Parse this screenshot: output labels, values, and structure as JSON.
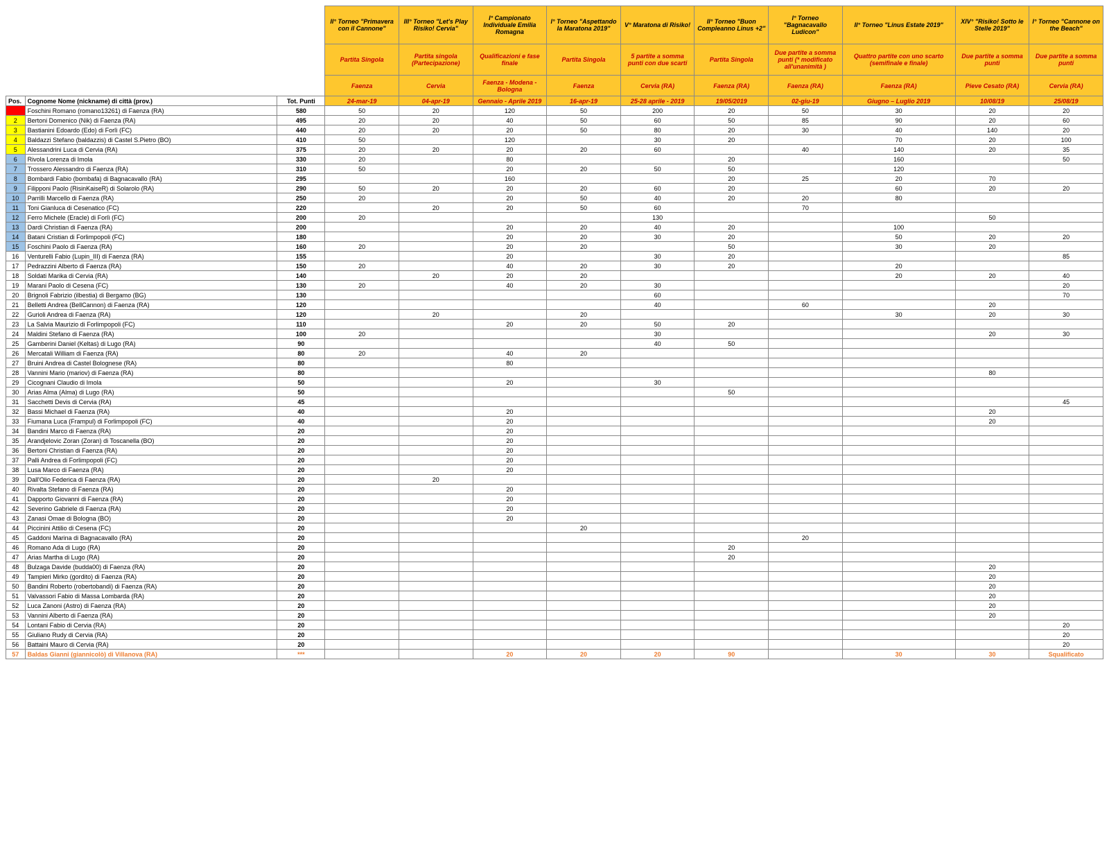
{
  "columns": {
    "pos": "Pos.",
    "name": "Cognome Nome (nickname) di città (prov.)",
    "tot": "Tot. Punti"
  },
  "events": [
    {
      "title": "II° Torneo \"Primavera con il Cannone\"",
      "format": "Partita Singola",
      "city": "Faenza",
      "date": "24-mar-19"
    },
    {
      "title": "III° Torneo \"Let's Play Risiko! Cervia\"",
      "format": "Partita singola (Partecipazione)",
      "city": "Cervia",
      "date": "04-apr-19"
    },
    {
      "title": "I° Campionato Individuale Emilia Romagna",
      "format": "Qualificazioni e fase finale",
      "city": "Faenza - Modena - Bologna",
      "date": "Gennaio - Aprile 2019"
    },
    {
      "title": "I° Torneo \"Aspettando la Maratona 2019\"",
      "format": "Partita Singola",
      "city": "Faenza",
      "date": "16-apr-19"
    },
    {
      "title": "V° Maratona di Risiko!",
      "format": "5 partite a somma punti con due scarti",
      "city": "Cervia (RA)",
      "date": "25-28 aprile - 2019"
    },
    {
      "title": "II° Torneo \"Buon Compleanno Linus +2\"",
      "format": "Partita Singola",
      "city": "Faenza (RA)",
      "date": "19/05/2019"
    },
    {
      "title": "I° Torneo \"Bagnacavallo Ludicon\"",
      "format": "Due partite a somma punti (* modificato all'unanimità )",
      "city": "Faenza (RA)",
      "date": "02-giu-19"
    },
    {
      "title": "II° Torneo \"Linus Estate 2019\"",
      "format": "Quattro partite con uno scarto (semifinale e finale)",
      "city": "Faenza (RA)",
      "date": "Giugno – Luglio 2019"
    },
    {
      "title": "XIV° \"Risiko! Sotto le Stelle 2019\"",
      "format": "Due partite a somma punti",
      "city": "Pieve Cesato (RA)",
      "date": "10/08/19"
    },
    {
      "title": "I° Torneo \"Cannone on the Beach\"",
      "format": "Due partite a somma punti",
      "city": "Cervia (RA)",
      "date": "25/08/19"
    }
  ],
  "rows": [
    {
      "pos": "1",
      "posClass": "pos-red",
      "name": "Foschini Romano (romano13261) di Faenza (RA)",
      "tot": "580",
      "v": [
        "50",
        "20",
        "120",
        "50",
        "200",
        "20",
        "50",
        "30",
        "20",
        "20"
      ]
    },
    {
      "pos": "2",
      "posClass": "pos-yel",
      "name": "Bertoni Domenico (Nik) di Faenza (RA)",
      "tot": "495",
      "v": [
        "20",
        "20",
        "40",
        "50",
        "60",
        "50",
        "85",
        "90",
        "20",
        "60"
      ]
    },
    {
      "pos": "3",
      "posClass": "pos-yel",
      "name": "Bastianini Edoardo (Edo) di Forlì (FC)",
      "tot": "440",
      "v": [
        "20",
        "20",
        "20",
        "50",
        "80",
        "20",
        "30",
        "40",
        "140",
        "20"
      ]
    },
    {
      "pos": "4",
      "posClass": "pos-yel",
      "name": "Baldazzi Stefano (baldazzis) di Castel S.Pietro (BO)",
      "tot": "410",
      "v": [
        "50",
        "",
        "120",
        "",
        "30",
        "20",
        "",
        "70",
        "20",
        "100"
      ]
    },
    {
      "pos": "5",
      "posClass": "pos-yel",
      "name": "Alessandrini Luca di Cervia (RA)",
      "tot": "375",
      "v": [
        "20",
        "20",
        "20",
        "20",
        "60",
        "",
        "40",
        "140",
        "20",
        "35"
      ]
    },
    {
      "pos": "6",
      "posClass": "pos-blu",
      "name": "Rivola Lorenza di Imola",
      "tot": "330",
      "v": [
        "20",
        "",
        "80",
        "",
        "",
        "20",
        "",
        "160",
        "",
        "50"
      ]
    },
    {
      "pos": "7",
      "posClass": "pos-blu",
      "name": "Trossero Alessandro di Faenza (RA)",
      "tot": "310",
      "v": [
        "50",
        "",
        "20",
        "20",
        "50",
        "50",
        "",
        "120",
        "",
        ""
      ]
    },
    {
      "pos": "8",
      "posClass": "pos-blu",
      "name": "Bombardi Fabio (bombafa) di Bagnacavallo (RA)",
      "tot": "295",
      "v": [
        "",
        "",
        "160",
        "",
        "",
        "20",
        "25",
        "20",
        "70",
        ""
      ]
    },
    {
      "pos": "9",
      "posClass": "pos-blu",
      "name": "Filipponi Paolo (RisinKaiseR) di Solarolo (RA)",
      "tot": "290",
      "v": [
        "50",
        "20",
        "20",
        "20",
        "60",
        "20",
        "",
        "60",
        "20",
        "20"
      ]
    },
    {
      "pos": "10",
      "posClass": "pos-blu",
      "name": "Parrilli Marcello di Faenza (RA)",
      "tot": "250",
      "v": [
        "20",
        "",
        "20",
        "50",
        "40",
        "20",
        "20",
        "80",
        "",
        ""
      ]
    },
    {
      "pos": "11",
      "posClass": "pos-blu",
      "name": "Toni Gianluca di Cesenatico (FC)",
      "tot": "220",
      "v": [
        "",
        "20",
        "20",
        "50",
        "60",
        "",
        "70",
        "",
        "",
        ""
      ]
    },
    {
      "pos": "12",
      "posClass": "pos-blu",
      "name": "Ferro Michele (Eracle) di Forlì (FC)",
      "tot": "200",
      "v": [
        "20",
        "",
        "",
        "",
        "130",
        "",
        "",
        "",
        "50",
        ""
      ]
    },
    {
      "pos": "13",
      "posClass": "pos-blu",
      "name": "Dardi Christian di Faenza (RA)",
      "tot": "200",
      "v": [
        "",
        "",
        "20",
        "20",
        "40",
        "20",
        "",
        "100",
        "",
        ""
      ]
    },
    {
      "pos": "14",
      "posClass": "pos-blu",
      "name": "Batani Cristian di Forlimpopoli (FC)",
      "tot": "180",
      "v": [
        "",
        "",
        "20",
        "20",
        "30",
        "20",
        "",
        "50",
        "20",
        "20"
      ]
    },
    {
      "pos": "15",
      "posClass": "pos-blu",
      "name": "Foschini Paolo di Faenza (RA)",
      "tot": "160",
      "v": [
        "20",
        "",
        "20",
        "20",
        "",
        "50",
        "",
        "30",
        "20",
        ""
      ]
    },
    {
      "pos": "16",
      "name": "Venturelli Fabio (Lupin_III) di Faenza (RA)",
      "tot": "155",
      "v": [
        "",
        "",
        "20",
        "",
        "30",
        "20",
        "",
        "",
        "",
        "85"
      ]
    },
    {
      "pos": "17",
      "name": "Pedrazzini Alberto di Faenza (RA)",
      "tot": "150",
      "v": [
        "20",
        "",
        "40",
        "20",
        "30",
        "20",
        "",
        "20",
        "",
        ""
      ]
    },
    {
      "pos": "18",
      "name": "Soldati Marika di Cervia (RA)",
      "tot": "140",
      "v": [
        "",
        "20",
        "20",
        "20",
        "",
        "",
        "",
        "20",
        "20",
        "40"
      ]
    },
    {
      "pos": "19",
      "name": "Marani Paolo di Cesena (FC)",
      "tot": "130",
      "v": [
        "20",
        "",
        "40",
        "20",
        "30",
        "",
        "",
        "",
        "",
        "20"
      ]
    },
    {
      "pos": "20",
      "name": "Brignoli Fabrizio (ilbestia) di Bergamo (BG)",
      "tot": "130",
      "v": [
        "",
        "",
        "",
        "",
        "60",
        "",
        "",
        "",
        "",
        "70"
      ]
    },
    {
      "pos": "21",
      "name": "Belletti Andrea (BellCannon) di Faenza (RA)",
      "tot": "120",
      "v": [
        "",
        "",
        "",
        "",
        "40",
        "",
        "60",
        "",
        "20",
        ""
      ]
    },
    {
      "pos": "22",
      "name": "Gurioli Andrea di Faenza (RA)",
      "tot": "120",
      "v": [
        "",
        "20",
        "",
        "20",
        "",
        "",
        "",
        "30",
        "20",
        "30"
      ]
    },
    {
      "pos": "23",
      "name": "La Salvia Maurizio di Forlimpopoli (FC)",
      "tot": "110",
      "v": [
        "",
        "",
        "20",
        "20",
        "50",
        "20",
        "",
        "",
        "",
        ""
      ]
    },
    {
      "pos": "24",
      "name": "Maldini Stefano di Faenza (RA)",
      "tot": "100",
      "v": [
        "20",
        "",
        "",
        "",
        "30",
        "",
        "",
        "",
        "20",
        "30"
      ]
    },
    {
      "pos": "25",
      "name": "Gamberini Daniel (Keltas) di Lugo (RA)",
      "tot": "90",
      "v": [
        "",
        "",
        "",
        "",
        "40",
        "50",
        "",
        "",
        "",
        ""
      ]
    },
    {
      "pos": "26",
      "name": "Mercatali William di Faenza (RA)",
      "tot": "80",
      "v": [
        "20",
        "",
        "40",
        "20",
        "",
        "",
        "",
        "",
        "",
        ""
      ]
    },
    {
      "pos": "27",
      "name": "Bruini Andrea di Castel Bolognese (RA)",
      "tot": "80",
      "v": [
        "",
        "",
        "80",
        "",
        "",
        "",
        "",
        "",
        "",
        ""
      ]
    },
    {
      "pos": "28",
      "name": "Vannini Mario (mariov) di Faenza (RA)",
      "tot": "80",
      "v": [
        "",
        "",
        "",
        "",
        "",
        "",
        "",
        "",
        "80",
        ""
      ]
    },
    {
      "pos": "29",
      "name": "Cicognani Claudio di Imola",
      "tot": "50",
      "v": [
        "",
        "",
        "20",
        "",
        "30",
        "",
        "",
        "",
        "",
        ""
      ]
    },
    {
      "pos": "30",
      "name": "Arias Alma (Alma) di Lugo (RA)",
      "tot": "50",
      "v": [
        "",
        "",
        "",
        "",
        "",
        "50",
        "",
        "",
        "",
        ""
      ]
    },
    {
      "pos": "31",
      "name": "Sacchetti Devis di Cervia (RA)",
      "tot": "45",
      "v": [
        "",
        "",
        "",
        "",
        "",
        "",
        "",
        "",
        "",
        "45"
      ]
    },
    {
      "pos": "32",
      "name": "Bassi Michael di Faenza (RA)",
      "tot": "40",
      "v": [
        "",
        "",
        "20",
        "",
        "",
        "",
        "",
        "",
        "20",
        ""
      ]
    },
    {
      "pos": "33",
      "name": "Fiumana Luca (Frampul) di Forlimpopoli (FC)",
      "tot": "40",
      "v": [
        "",
        "",
        "20",
        "",
        "",
        "",
        "",
        "",
        "20",
        ""
      ]
    },
    {
      "pos": "34",
      "name": "Bandini Marco di Faenza (RA)",
      "tot": "20",
      "v": [
        "",
        "",
        "20",
        "",
        "",
        "",
        "",
        "",
        "",
        ""
      ]
    },
    {
      "pos": "35",
      "name": "Arandjelovic Zoran (Zoran) di Toscanella (BO)",
      "tot": "20",
      "v": [
        "",
        "",
        "20",
        "",
        "",
        "",
        "",
        "",
        "",
        ""
      ]
    },
    {
      "pos": "36",
      "name": "Bertoni Christian di Faenza (RA)",
      "tot": "20",
      "v": [
        "",
        "",
        "20",
        "",
        "",
        "",
        "",
        "",
        "",
        ""
      ]
    },
    {
      "pos": "37",
      "name": "Palli Andrea di Forlimpopoli (FC)",
      "tot": "20",
      "v": [
        "",
        "",
        "20",
        "",
        "",
        "",
        "",
        "",
        "",
        ""
      ]
    },
    {
      "pos": "38",
      "name": "Lusa Marco di Faenza (RA)",
      "tot": "20",
      "v": [
        "",
        "",
        "20",
        "",
        "",
        "",
        "",
        "",
        "",
        ""
      ]
    },
    {
      "pos": "39",
      "name": "Dall'Olio Federica di Faenza (RA)",
      "tot": "20",
      "v": [
        "",
        "20",
        "",
        "",
        "",
        "",
        "",
        "",
        "",
        ""
      ]
    },
    {
      "pos": "40",
      "name": "Rivalta Stefano di Faenza (RA)",
      "tot": "20",
      "v": [
        "",
        "",
        "20",
        "",
        "",
        "",
        "",
        "",
        "",
        ""
      ]
    },
    {
      "pos": "41",
      "name": "Dapporto Giovanni di Faenza (RA)",
      "tot": "20",
      "v": [
        "",
        "",
        "20",
        "",
        "",
        "",
        "",
        "",
        "",
        ""
      ]
    },
    {
      "pos": "42",
      "name": "Severino Gabriele di Faenza (RA)",
      "tot": "20",
      "v": [
        "",
        "",
        "20",
        "",
        "",
        "",
        "",
        "",
        "",
        ""
      ]
    },
    {
      "pos": "43",
      "name": "Zanasi Omae di Bologna (BO)",
      "tot": "20",
      "v": [
        "",
        "",
        "20",
        "",
        "",
        "",
        "",
        "",
        "",
        ""
      ]
    },
    {
      "pos": "44",
      "name": "Piccinini Attilio di Cesena (FC)",
      "tot": "20",
      "v": [
        "",
        "",
        "",
        "20",
        "",
        "",
        "",
        "",
        "",
        ""
      ]
    },
    {
      "pos": "45",
      "name": "Gaddoni Marina di Bagnacavallo (RA)",
      "tot": "20",
      "v": [
        "",
        "",
        "",
        "",
        "",
        "",
        "20",
        "",
        "",
        ""
      ]
    },
    {
      "pos": "46",
      "name": "Romano Ada di Lugo (RA)",
      "tot": "20",
      "v": [
        "",
        "",
        "",
        "",
        "",
        "20",
        "",
        "",
        "",
        ""
      ]
    },
    {
      "pos": "47",
      "name": "Arias Martha di Lugo (RA)",
      "tot": "20",
      "v": [
        "",
        "",
        "",
        "",
        "",
        "20",
        "",
        "",
        "",
        ""
      ]
    },
    {
      "pos": "48",
      "name": "Bulzaga Davide (budda00) di Faenza (RA)",
      "tot": "20",
      "v": [
        "",
        "",
        "",
        "",
        "",
        "",
        "",
        "",
        "20",
        ""
      ]
    },
    {
      "pos": "49",
      "name": "Tampieri Mirko (gordito) di Faenza (RA)",
      "tot": "20",
      "v": [
        "",
        "",
        "",
        "",
        "",
        "",
        "",
        "",
        "20",
        ""
      ]
    },
    {
      "pos": "50",
      "name": "Bandini Roberto (robertobandi) di Faenza (RA)",
      "tot": "20",
      "v": [
        "",
        "",
        "",
        "",
        "",
        "",
        "",
        "",
        "20",
        ""
      ]
    },
    {
      "pos": "51",
      "name": "Valvassori Fabio di Massa Lombarda (RA)",
      "tot": "20",
      "v": [
        "",
        "",
        "",
        "",
        "",
        "",
        "",
        "",
        "20",
        ""
      ]
    },
    {
      "pos": "52",
      "name": "Luca Zanoni (Astro) di Faenza (RA)",
      "tot": "20",
      "v": [
        "",
        "",
        "",
        "",
        "",
        "",
        "",
        "",
        "20",
        ""
      ]
    },
    {
      "pos": "53",
      "name": "Vannini Alberto di Faenza (RA)",
      "tot": "20",
      "v": [
        "",
        "",
        "",
        "",
        "",
        "",
        "",
        "",
        "20",
        ""
      ]
    },
    {
      "pos": "54",
      "name": "Lontani Fabio di Cervia (RA)",
      "tot": "20",
      "v": [
        "",
        "",
        "",
        "",
        "",
        "",
        "",
        "",
        "",
        "20"
      ]
    },
    {
      "pos": "55",
      "name": "Giuliano Rudy di Cervia (RA)",
      "tot": "20",
      "v": [
        "",
        "",
        "",
        "",
        "",
        "",
        "",
        "",
        "",
        "20"
      ]
    },
    {
      "pos": "56",
      "name": "Battaini Mauro di Cervia (RA)",
      "tot": "20",
      "v": [
        "",
        "",
        "",
        "",
        "",
        "",
        "",
        "",
        "",
        "20"
      ]
    },
    {
      "pos": "57",
      "name": "Baldas Gianni (giannicolò) di Villanova (RA)",
      "tot": "***",
      "v": [
        "",
        "",
        "20",
        "20",
        "20",
        "90",
        "",
        "30",
        "30",
        "Squalificato"
      ],
      "orange": true
    }
  ]
}
